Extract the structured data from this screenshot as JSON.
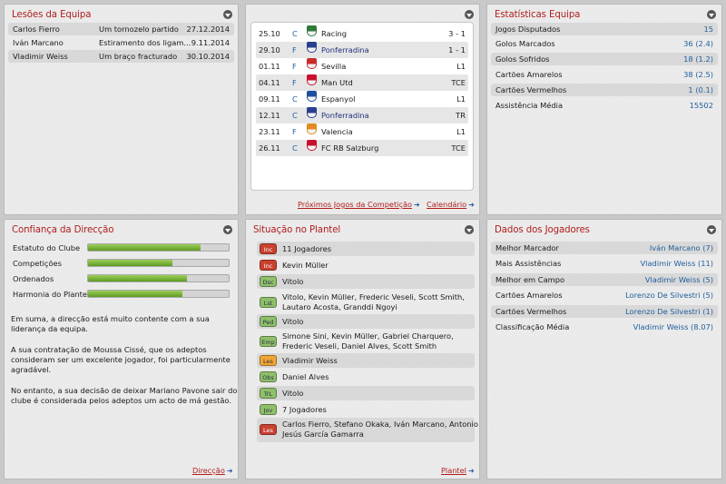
{
  "injuries": {
    "title": "Lesões da Equipa",
    "rows": [
      {
        "player": "Carlos Fierro",
        "injury": "Um tornozelo partido",
        "date": "27.12.2014"
      },
      {
        "player": "Iván Marcano",
        "injury": "Estiramento dos ligam...",
        "date": "9.11.2014"
      },
      {
        "player": "Vladimir Weiss",
        "injury": "Um braço fracturado",
        "date": "30.10.2014"
      }
    ]
  },
  "fixtures": {
    "rows": [
      {
        "date": "25.10",
        "venue": "C",
        "team": "Racing",
        "result": "3 - 1"
      },
      {
        "date": "29.10",
        "venue": "F",
        "team": "Ponferradina",
        "result": "1 - 1"
      },
      {
        "date": "01.11",
        "venue": "F",
        "team": "Sevilla",
        "result": "L1"
      },
      {
        "date": "04.11",
        "venue": "F",
        "team": "Man Utd",
        "result": "TCE"
      },
      {
        "date": "09.11",
        "venue": "C",
        "team": "Espanyol",
        "result": "L1"
      },
      {
        "date": "12.11",
        "venue": "C",
        "team": "Ponferradina",
        "result": "TR"
      },
      {
        "date": "23.11",
        "venue": "F",
        "team": "Valencia",
        "result": "L1"
      },
      {
        "date": "26.11",
        "venue": "C",
        "team": "FC RB Salzburg",
        "result": "TCE"
      }
    ],
    "crest_colors": [
      "#2f7a3a",
      "#2a3f8f",
      "#c92b2b",
      "#c8102e",
      "#1c4fa0",
      "#2a3f8f",
      "#e28a1f",
      "#c8102e"
    ],
    "link_next": "Próximos Jogos da Competição",
    "link_calendar": "Calendário"
  },
  "stats": {
    "title": "Estatísticas Equipa",
    "rows": [
      {
        "label": "Jogos Disputados",
        "value": "15"
      },
      {
        "label": "Golos Marcados",
        "value": "36 (2.4)"
      },
      {
        "label": "Golos Sofridos",
        "value": "18 (1.2)"
      },
      {
        "label": "Cartões Amarelos",
        "value": "38 (2.5)"
      },
      {
        "label": "Cartões Vermelhos",
        "value": "1 (0.1)"
      },
      {
        "label": "Assistência Média",
        "value": "15502"
      }
    ]
  },
  "confidence": {
    "title": "Confiança da Direcção",
    "bars": [
      {
        "label": "Estatuto do Clube",
        "level": 0.8
      },
      {
        "label": "Competições",
        "level": 0.6
      },
      {
        "label": "Ordenados",
        "level": 0.7
      },
      {
        "label": "Harmonia do Plantel",
        "level": 0.67
      }
    ],
    "paragraphs": [
      "Em suma, a direcção está muito contente com a sua liderança da equipa.",
      "A sua contratação de Moussa Cissé, que os adeptos consideram ser um excelente jogador, foi particularmente agradável.",
      "No entanto, a sua decisão de deixar Mariano Pavone sair do clube é considerada pelos adeptos um acto de má gestão."
    ],
    "link": "Direcção"
  },
  "squad": {
    "title": "Situação no Plantel",
    "rows": [
      {
        "badge": "Inc",
        "color": "red",
        "text": "11 Jogadores"
      },
      {
        "badge": "Inc",
        "color": "red",
        "text": "Kevin Müller"
      },
      {
        "badge": "Dsc",
        "color": "green",
        "text": "Vitolo"
      },
      {
        "badge": "Lst",
        "color": "green",
        "text": "Vitolo, Kevin Müller, Frederic Veseli, Scott Smith,\nLautaro Acosta, Granddi Ngoyi"
      },
      {
        "badge": "Ped",
        "color": "green",
        "text": "Vitolo"
      },
      {
        "badge": "Emp",
        "color": "green",
        "text": "Simone Sini, Kevin Müller, Gabriel Charquero,\nFrederic Veseli, Daniel Alves, Scott Smith"
      },
      {
        "badge": "Les",
        "color": "orange",
        "text": "Vladimir Weiss"
      },
      {
        "badge": "Obs",
        "color": "green",
        "text": "Daniel Alves"
      },
      {
        "badge": "TrL",
        "color": "green",
        "text": "Vitolo"
      },
      {
        "badge": "Jov",
        "color": "green",
        "text": "7 Jogadores"
      },
      {
        "badge": "Les",
        "color": "red",
        "text": "Carlos Fierro, Stefano Okaka, Iván Marcano, Antonio\nJesús García Gamarra"
      }
    ],
    "link": "Plantel"
  },
  "players": {
    "title": "Dados dos Jogadores",
    "rows": [
      {
        "label": "Melhor Marcador",
        "value": "Iván Marcano (7)"
      },
      {
        "label": "Mais Assistências",
        "value": "Vladimir Weiss (11)"
      },
      {
        "label": "Melhor em Campo",
        "value": "Vladimir Weiss (5)"
      },
      {
        "label": "Cartões Amarelos",
        "value": "Lorenzo De Silvestri (5)"
      },
      {
        "label": "Cartões Vermelhos",
        "value": "Lorenzo De Silvestri (1)"
      },
      {
        "label": "Classificação Média",
        "value": "Vladimir Weiss (8.07)"
      }
    ]
  }
}
